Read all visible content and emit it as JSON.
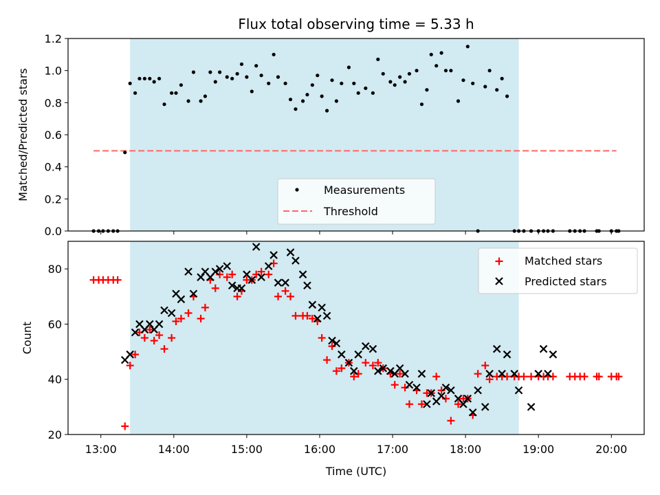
{
  "chart_data": [
    {
      "type": "scatter",
      "title": "Flux total observing time = 5.33 h",
      "xlabel": "",
      "ylabel": "Matched/Predicted stars",
      "xlim": [
        12.55,
        20.45
      ],
      "ylim": [
        0,
        1.2
      ],
      "y_ticks": [
        0,
        0.2,
        0.4,
        0.6,
        0.8,
        1.0,
        1.2
      ],
      "y_tick_labels": [
        "0.0",
        "0.2",
        "0.4",
        "0.6",
        "0.8",
        "1.0",
        "1.2"
      ],
      "shaded_span": {
        "start": 13.4,
        "end": 18.73,
        "color": "#add8e6"
      },
      "threshold": {
        "name": "Threshold",
        "y": 0.5,
        "x_range": [
          12.9,
          20.07
        ],
        "color": "#ff6666"
      },
      "legend": {
        "position": "lower-center",
        "entries": [
          "Measurements",
          "Threshold"
        ]
      },
      "series": [
        {
          "name": "Measurements",
          "marker": "dot",
          "color": "#000000",
          "x": [
            12.9,
            12.97,
            13.03,
            13.1,
            13.17,
            13.23,
            13.33,
            13.4,
            13.47,
            13.53,
            13.6,
            13.67,
            13.73,
            13.8,
            13.87,
            13.97,
            14.03,
            14.1,
            14.2,
            14.27,
            14.37,
            14.43,
            14.5,
            14.57,
            14.63,
            14.73,
            14.8,
            14.87,
            14.93,
            15.0,
            15.07,
            15.13,
            15.2,
            15.3,
            15.37,
            15.43,
            15.53,
            15.6,
            15.67,
            15.77,
            15.83,
            15.9,
            15.97,
            16.03,
            16.1,
            16.17,
            16.23,
            16.3,
            16.4,
            16.47,
            16.53,
            16.63,
            16.73,
            16.8,
            16.87,
            16.97,
            17.03,
            17.1,
            17.17,
            17.23,
            17.33,
            17.4,
            17.47,
            17.53,
            17.6,
            17.67,
            17.73,
            17.8,
            17.9,
            17.97,
            18.03,
            18.1,
            18.17,
            18.27,
            18.33,
            18.43,
            18.5,
            18.57,
            18.67,
            18.73,
            18.8,
            18.9,
            19.0,
            19.07,
            19.13,
            19.2,
            19.43,
            19.5,
            19.57,
            19.63,
            19.8,
            19.83,
            20.0,
            20.07,
            20.1
          ],
          "y": [
            0.0,
            0.0,
            0.0,
            0.0,
            0.0,
            0.0,
            0.49,
            0.92,
            0.86,
            0.95,
            0.95,
            0.95,
            0.93,
            0.95,
            0.79,
            0.86,
            0.86,
            0.91,
            0.81,
            0.99,
            0.81,
            0.84,
            0.99,
            0.93,
            0.99,
            0.96,
            0.95,
            0.98,
            1.04,
            0.96,
            0.87,
            1.03,
            0.97,
            0.92,
            1.1,
            0.96,
            0.92,
            0.82,
            0.76,
            0.81,
            0.85,
            0.91,
            0.97,
            0.84,
            0.75,
            0.94,
            0.81,
            0.92,
            1.02,
            0.92,
            0.86,
            0.89,
            0.86,
            1.07,
            0.98,
            0.93,
            0.91,
            0.96,
            0.93,
            0.98,
            1.0,
            0.79,
            0.88,
            1.1,
            1.03,
            1.11,
            1.0,
            1.0,
            0.81,
            0.94,
            1.15,
            0.92,
            0.0,
            0.9,
            1.0,
            0.88,
            0.95,
            0.84,
            0.0,
            0.0,
            0.0,
            0.0,
            0.0,
            0.0,
            0.0,
            0.0,
            0.0,
            0.0,
            0.0,
            0.0,
            0.0,
            0.0,
            0.0,
            0.0,
            0.0
          ]
        }
      ]
    },
    {
      "type": "scatter",
      "title": "",
      "xlabel": "Time (UTC)",
      "ylabel": "Count",
      "xlim": [
        12.55,
        20.45
      ],
      "ylim": [
        20,
        90
      ],
      "x_ticks": [
        13,
        14,
        15,
        16,
        17,
        18,
        19,
        20
      ],
      "x_tick_labels": [
        "13:00",
        "14:00",
        "15:00",
        "16:00",
        "17:00",
        "18:00",
        "19:00",
        "20:00"
      ],
      "y_ticks": [
        20,
        40,
        60,
        80
      ],
      "y_tick_labels": [
        "20",
        "40",
        "60",
        "80"
      ],
      "shaded_span": {
        "start": 13.4,
        "end": 18.73,
        "color": "#add8e6"
      },
      "legend": {
        "position": "top-right",
        "entries": [
          "Matched stars",
          "Predicted stars"
        ]
      },
      "series": [
        {
          "name": "Matched stars",
          "marker": "plus",
          "color": "#ff0000",
          "x": [
            12.9,
            12.97,
            13.03,
            13.1,
            13.17,
            13.23,
            13.33,
            13.4,
            13.47,
            13.53,
            13.6,
            13.67,
            13.73,
            13.8,
            13.87,
            13.97,
            14.03,
            14.1,
            14.2,
            14.27,
            14.37,
            14.43,
            14.5,
            14.57,
            14.63,
            14.73,
            14.8,
            14.87,
            14.93,
            15.0,
            15.07,
            15.13,
            15.2,
            15.3,
            15.37,
            15.43,
            15.53,
            15.6,
            15.67,
            15.77,
            15.83,
            15.9,
            15.97,
            16.03,
            16.1,
            16.17,
            16.23,
            16.3,
            16.4,
            16.47,
            16.53,
            16.63,
            16.73,
            16.8,
            16.87,
            16.97,
            17.03,
            17.1,
            17.17,
            17.23,
            17.33,
            17.4,
            17.47,
            17.53,
            17.6,
            17.67,
            17.73,
            17.8,
            17.9,
            17.97,
            18.03,
            18.1,
            18.17,
            18.27,
            18.33,
            18.43,
            18.5,
            18.57,
            18.67,
            18.73,
            18.8,
            18.9,
            19.0,
            19.07,
            19.13,
            19.2,
            19.43,
            19.5,
            19.57,
            19.63,
            19.8,
            19.83,
            20.0,
            20.07,
            20.1
          ],
          "y": [
            76,
            76,
            76,
            76,
            76,
            76,
            23,
            45,
            49,
            57,
            55,
            58,
            54,
            56,
            51,
            55,
            61,
            62,
            64,
            70,
            62,
            66,
            76,
            73,
            78,
            77,
            78,
            70,
            72,
            76,
            76,
            78,
            79,
            78,
            82,
            70,
            72,
            70,
            63,
            63,
            63,
            62,
            61,
            55,
            47,
            52,
            43,
            44,
            46,
            41,
            42,
            46,
            45,
            46,
            44,
            42,
            38,
            42,
            37,
            31,
            36,
            31,
            35,
            35,
            41,
            36,
            33,
            25,
            31,
            33,
            33,
            27,
            42,
            45,
            40,
            41,
            41,
            41,
            41,
            41,
            41,
            41,
            41,
            41,
            41,
            41,
            41,
            41,
            41,
            41,
            41,
            41,
            41,
            41,
            41
          ],
          "draw_count": 95
        },
        {
          "name": "Predicted stars",
          "marker": "x",
          "color": "#000000",
          "x": [
            13.33,
            13.4,
            13.47,
            13.53,
            13.6,
            13.67,
            13.73,
            13.8,
            13.87,
            13.97,
            14.03,
            14.1,
            14.2,
            14.27,
            14.37,
            14.43,
            14.5,
            14.57,
            14.63,
            14.73,
            14.8,
            14.87,
            14.93,
            15.0,
            15.07,
            15.13,
            15.2,
            15.3,
            15.37,
            15.43,
            15.53,
            15.6,
            15.67,
            15.77,
            15.83,
            15.9,
            15.97,
            16.03,
            16.1,
            16.17,
            16.23,
            16.3,
            16.4,
            16.47,
            16.53,
            16.63,
            16.73,
            16.8,
            16.87,
            16.97,
            17.03,
            17.1,
            17.17,
            17.23,
            17.33,
            17.4,
            17.47,
            17.53,
            17.6,
            17.67,
            17.73,
            17.8,
            17.9,
            17.97,
            18.03,
            18.1,
            18.17,
            18.27,
            18.33,
            18.43,
            18.5,
            18.57,
            18.67,
            18.73,
            18.9,
            19.0,
            19.07,
            19.13,
            19.2
          ],
          "y": [
            47,
            49,
            57,
            60,
            58,
            60,
            58,
            60,
            65,
            64,
            71,
            69,
            79,
            71,
            77,
            79,
            77,
            79,
            80,
            81,
            74,
            73,
            73,
            78,
            76,
            88,
            77,
            81,
            85,
            75,
            75,
            86,
            83,
            78,
            74,
            67,
            62,
            66,
            63,
            54,
            53,
            49,
            46,
            43,
            49,
            52,
            51,
            43,
            44,
            43,
            42,
            44,
            42,
            38,
            37,
            42,
            31,
            35,
            32,
            34,
            37,
            36,
            33,
            31,
            33,
            28,
            36,
            30,
            42,
            51,
            42,
            49,
            42,
            36,
            30,
            42,
            51,
            42,
            49
          ],
          "draw_count": 79
        }
      ]
    }
  ]
}
